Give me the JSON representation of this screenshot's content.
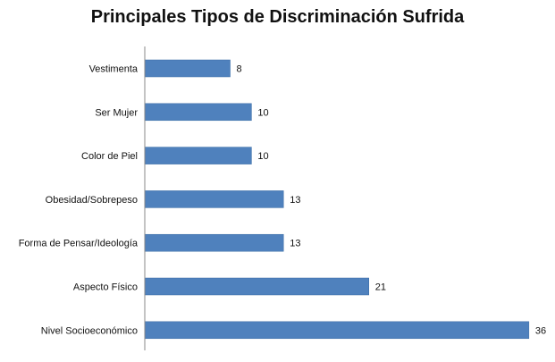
{
  "chart_data": {
    "type": "bar",
    "orientation": "horizontal",
    "title": "Principales Tipos de Discriminación Sufrida",
    "categories": [
      "Vestimenta",
      "Ser Mujer",
      "Color de Piel",
      "Obesidad/Sobrepeso",
      "Forma de Pensar/Ideología",
      "Aspecto Físico",
      "Nivel Socioeconómico"
    ],
    "values": [
      8,
      10,
      10,
      13,
      13,
      21,
      36
    ],
    "xlim": [
      0,
      36
    ],
    "grid": false,
    "legend": "none",
    "data_labels": true,
    "colors": {
      "bar": "#4F81BD",
      "bar_border": "#3A6BA5",
      "axis": "#888888"
    }
  }
}
